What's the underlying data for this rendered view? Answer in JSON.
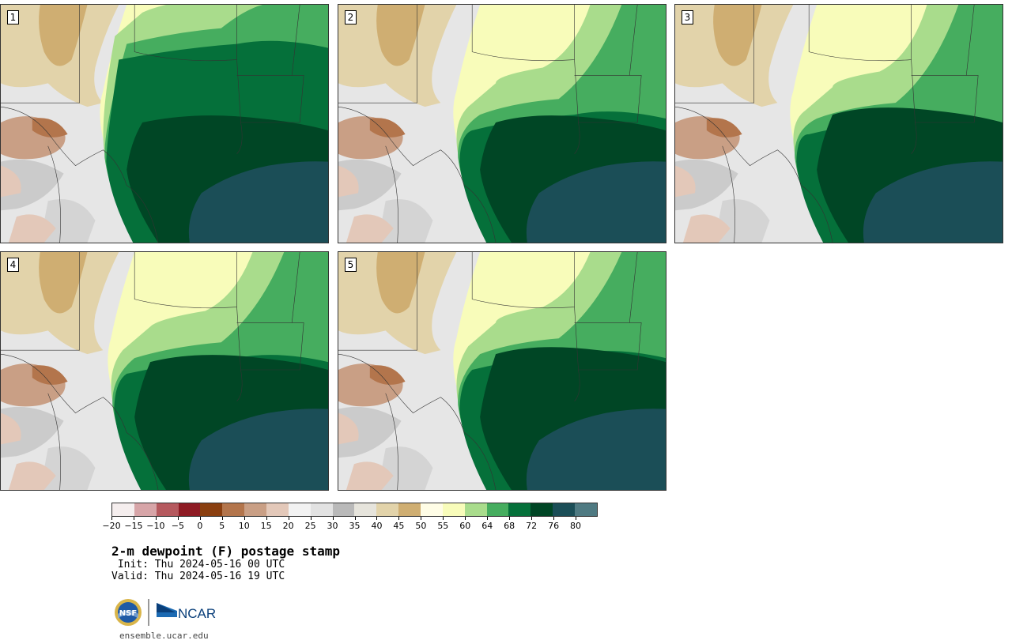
{
  "panels": [
    {
      "label": "1",
      "variant": 0
    },
    {
      "label": "2",
      "variant": 1
    },
    {
      "label": "3",
      "variant": 2
    },
    {
      "label": "4",
      "variant": 3
    },
    {
      "label": "5",
      "variant": 4
    }
  ],
  "colorbar": {
    "colors": [
      "#f5eeee",
      "#d7a5a8",
      "#b5595e",
      "#8e1b24",
      "#8a3f10",
      "#b3754c",
      "#c99f85",
      "#e3c8b9",
      "#f2f2f2",
      "#e2e2e2",
      "#b9b9b9",
      "#e6e4dc",
      "#e2d3aa",
      "#cfae72",
      "#fffde6",
      "#f8fcba",
      "#a9dc8c",
      "#46ad5f",
      "#05703a",
      "#004625",
      "#1b4e57",
      "#4f7a82"
    ],
    "ticks": [
      "-20",
      "-15",
      "-10",
      "-5",
      "0",
      "5",
      "10",
      "15",
      "20",
      "25",
      "30",
      "35",
      "40",
      "45",
      "50",
      "55",
      "60",
      "64",
      "68",
      "72",
      "76",
      "80"
    ]
  },
  "title": "2-m dewpoint (F) postage stamp",
  "init": " Init: Thu 2024-05-16 00 UTC",
  "valid": "Valid: Thu 2024-05-16 19 UTC",
  "logos": {
    "nsf": "NSF",
    "ncar": "NCAR"
  },
  "site": "ensemble.ucar.edu"
}
